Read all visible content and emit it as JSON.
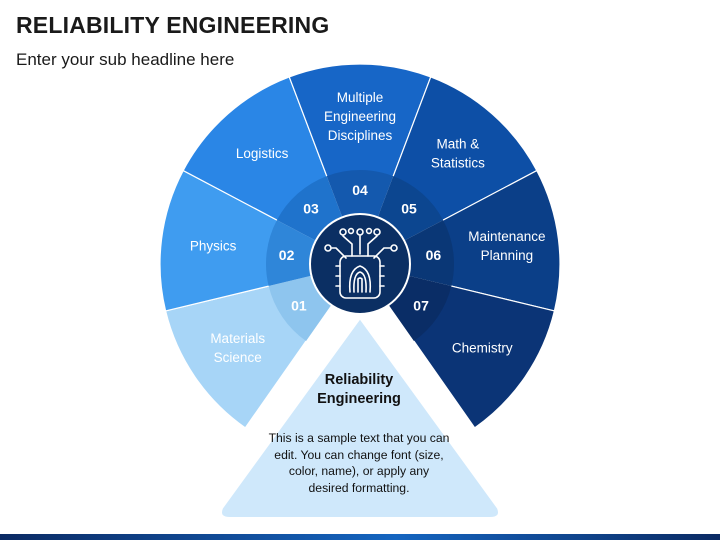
{
  "header": {
    "title": "RELIABILITY ENGINEERING",
    "subtitle": "Enter your sub headline here"
  },
  "segments": [
    {
      "number": "01",
      "label_lines": [
        "Materials",
        "Science"
      ],
      "color": "#a7d5f7",
      "inner_color": "#8ec5ee"
    },
    {
      "number": "02",
      "label_lines": [
        "Physics"
      ],
      "color": "#3f9cf0",
      "inner_color": "#2f86d9"
    },
    {
      "number": "03",
      "label_lines": [
        "Logistics"
      ],
      "color": "#2a86e6",
      "inner_color": "#1f73cc"
    },
    {
      "number": "04",
      "label_lines": [
        "Multiple",
        "Engineering",
        "Disciplines"
      ],
      "color": "#1766c7",
      "inner_color": "#1459ae"
    },
    {
      "number": "05",
      "label_lines": [
        "Math &",
        "Statistics"
      ],
      "color": "#0d4fa6",
      "inner_color": "#0c4690"
    },
    {
      "number": "06",
      "label_lines": [
        "Maintenance",
        "Planning"
      ],
      "color": "#0b3f88",
      "inner_color": "#0a3776"
    },
    {
      "number": "07",
      "label_lines": [
        "Chemistry"
      ],
      "color": "#0b3476",
      "inner_color": "#0a2d66"
    }
  ],
  "center": {
    "icon": "fingerprint-chip-icon",
    "color": "#0b2f63"
  },
  "callout": {
    "title": "Reliability Engineering",
    "body": "This is a sample text that you can edit. You can change font (size, color, name), or apply any desired formatting.",
    "color": "#cfe8fb"
  }
}
